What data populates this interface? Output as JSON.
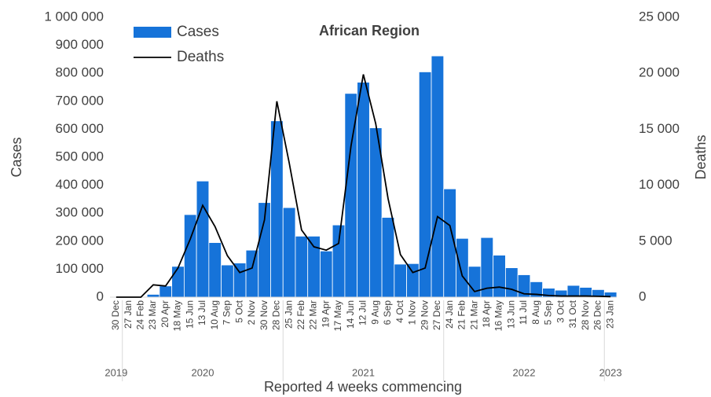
{
  "chart_data": {
    "type": "bar_line",
    "title": "African Region",
    "y_label": "Cases",
    "y2_label": "Deaths",
    "x_label": "Reported 4 weeks commencing",
    "categories": [
      "30 Dec",
      "27 Jan",
      "24 Feb",
      "23 Mar",
      "20 Apr",
      "18 May",
      "15 Jun",
      "13 Jul",
      "10 Aug",
      "7 Sep",
      "5 Oct",
      "2 Nov",
      "30 Nov",
      "28 Dec",
      "25 Jan",
      "22 Feb",
      "22 Mar",
      "19 Apr",
      "17 May",
      "14 Jun",
      "12 Jul",
      "9 Aug",
      "6 Sep",
      "4 Oct",
      "1 Nov",
      "29 Nov",
      "27 Dec",
      "24 Jan",
      "21 Feb",
      "21 Mar",
      "18 Apr",
      "16 May",
      "13 Jun",
      "11 Jul",
      "8 Aug",
      "5 Sep",
      "3 Oct",
      "31 Oct",
      "28 Nov",
      "26 Dec",
      "23 Jan"
    ],
    "years": [
      "2019",
      "2020",
      "2021",
      "2022",
      "2023"
    ],
    "series": [
      {
        "name": "Cases",
        "color": "#1673d9",
        "kind": "bar",
        "values": [
          0,
          0,
          0,
          10000,
          40000,
          110000,
          295000,
          415000,
          195000,
          115000,
          122000,
          168000,
          338000,
          630000,
          320000,
          218000,
          218000,
          165000,
          258000,
          728000,
          768000,
          605000,
          285000,
          118000,
          120000,
          805000,
          862000,
          387000,
          210000,
          110000,
          213000,
          150000,
          105000,
          80000,
          55000,
          32000,
          25000,
          42000,
          35000,
          27000,
          18000
        ]
      },
      {
        "name": "Deaths",
        "color": "#000000",
        "kind": "line",
        "axis": "y2",
        "values": [
          0,
          0,
          0,
          1100,
          1000,
          2600,
          5200,
          8200,
          6300,
          3700,
          2200,
          2600,
          6900,
          17500,
          12000,
          6000,
          4500,
          4200,
          4800,
          13500,
          19900,
          15500,
          8800,
          3800,
          2200,
          2600,
          7200,
          6400,
          1900,
          500,
          800,
          900,
          700,
          300,
          250,
          150,
          100,
          100,
          100,
          80,
          50
        ]
      }
    ],
    "ylim": [
      0,
      1000000
    ],
    "yticks": [
      0,
      {
        "value": 100000,
        "label": "100 000"
      },
      {
        "value": 200000,
        "label": "200 000"
      },
      {
        "value": 300000,
        "label": "300 000"
      },
      {
        "value": 400000,
        "label": "400 000"
      },
      {
        "value": 500000,
        "label": "500 000"
      },
      {
        "value": 600000,
        "label": "600 000"
      },
      {
        "value": 700000,
        "label": "700 000"
      },
      {
        "value": 800000,
        "label": "800 000"
      },
      {
        "value": 900000,
        "label": "900 000"
      },
      {
        "value": 1000000,
        "label": "1 000 000"
      }
    ],
    "y2lim": [
      0,
      25000
    ],
    "y2ticks": [
      0,
      {
        "value": 5000,
        "label": "5 000"
      },
      {
        "value": 10000,
        "label": "10 000"
      },
      {
        "value": 15000,
        "label": "15 000"
      },
      {
        "value": 20000,
        "label": "20 000"
      },
      {
        "value": 25000,
        "label": "25 000"
      }
    ]
  }
}
